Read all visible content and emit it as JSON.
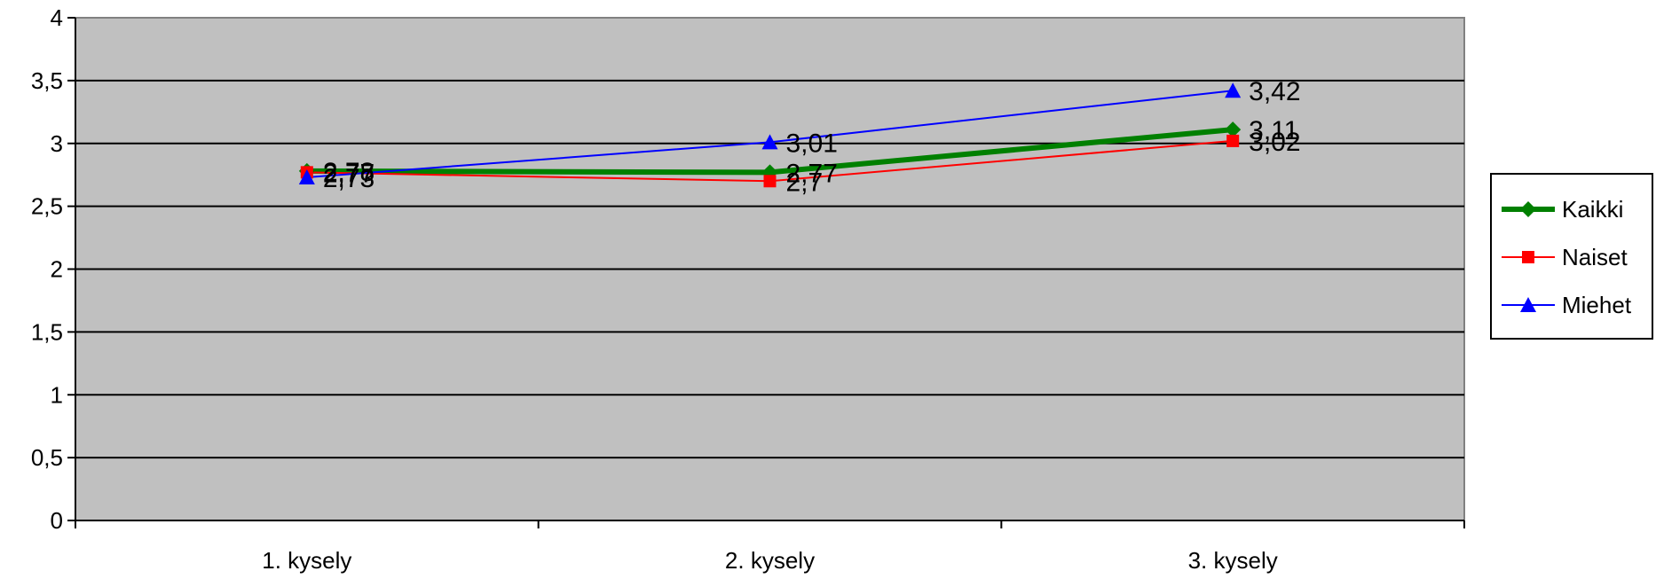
{
  "chart_data": {
    "type": "line",
    "title": "",
    "xlabel": "",
    "ylabel": "",
    "categories": [
      "1. kysely",
      "2. kysely",
      "3. kysely"
    ],
    "ylim": [
      0,
      4
    ],
    "yticks": [
      "0",
      "0,5",
      "1",
      "1,5",
      "2",
      "2,5",
      "3",
      "3,5",
      "4"
    ],
    "grid": true,
    "legend_position": "right",
    "series": [
      {
        "name": "Kaikki",
        "values": [
          2.78,
          2.77,
          3.11
        ],
        "labels": [
          "2,78",
          "2,77",
          "3,11"
        ],
        "color": "#008000",
        "marker": "diamond"
      },
      {
        "name": "Naiset",
        "values": [
          2.77,
          2.7,
          3.02
        ],
        "labels": [
          "2,77",
          "2,7",
          "3,02"
        ],
        "color": "#FF0000",
        "marker": "square"
      },
      {
        "name": "Miehet",
        "values": [
          2.73,
          3.01,
          3.42
        ],
        "labels": [
          "2,73",
          "3,01",
          "3,42"
        ],
        "color": "#0000FF",
        "marker": "triangle"
      }
    ],
    "plot_background": "#C0C0C0"
  }
}
